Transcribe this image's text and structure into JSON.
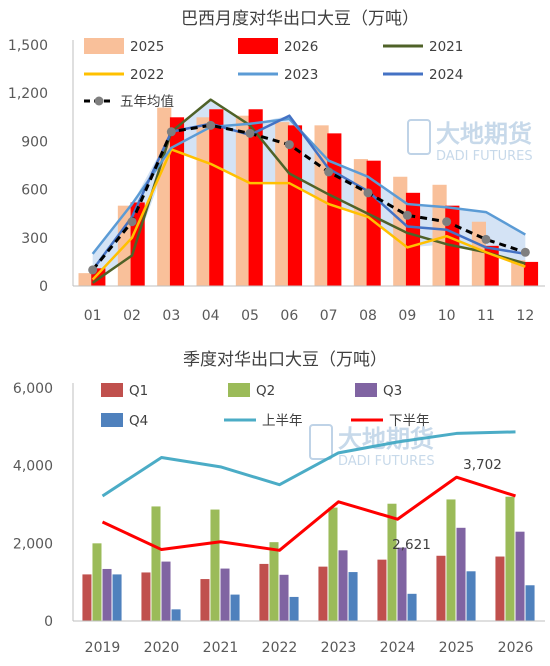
{
  "brand": {
    "name_cn": "大地期货",
    "name_en": "DADI FUTURES",
    "color": "#7fa7cf"
  },
  "chart_data": [
    {
      "type": "bar",
      "title": "巴西月度对华出口大豆（万吨）",
      "categories": [
        "01",
        "02",
        "03",
        "04",
        "05",
        "06",
        "07",
        "08",
        "09",
        "10",
        "11",
        "12"
      ],
      "ylim": [
        0,
        1500
      ],
      "yticks": [
        "0",
        "300",
        "600",
        "900",
        "1,200",
        "1,500"
      ],
      "yticks_values": [
        0,
        300,
        600,
        900,
        1200,
        1500
      ],
      "grid": false,
      "legend_position": "top",
      "band": {
        "note": "five-year range",
        "color": "#c6d9f1"
      },
      "series": [
        {
          "name": "2025",
          "kind": "bar",
          "color": "#f9c09a",
          "values": [
            80,
            500,
            1110,
            1050,
            1060,
            1020,
            1000,
            790,
            680,
            630,
            400,
            160
          ]
        },
        {
          "name": "2026",
          "kind": "bar",
          "color": "#ff0000",
          "values": [
            110,
            520,
            1050,
            1100,
            1100,
            1000,
            950,
            780,
            580,
            500,
            250,
            150
          ]
        },
        {
          "name": "2021",
          "kind": "line",
          "color": "#4f6228",
          "values": [
            20,
            190,
            960,
            1160,
            1000,
            700,
            570,
            450,
            330,
            260,
            210,
            140
          ]
        },
        {
          "name": "2022",
          "kind": "line",
          "color": "#ffc000",
          "values": [
            40,
            300,
            850,
            760,
            640,
            640,
            510,
            430,
            240,
            310,
            210,
            120
          ]
        },
        {
          "name": "2023",
          "kind": "line",
          "color": "#5b9bd5",
          "values": [
            200,
            510,
            860,
            990,
            1010,
            1040,
            780,
            680,
            510,
            490,
            460,
            320
          ]
        },
        {
          "name": "2024",
          "kind": "line",
          "color": "#4472c4",
          "values": [
            100,
            430,
            960,
            1010,
            940,
            1060,
            730,
            590,
            370,
            350,
            240,
            200
          ]
        },
        {
          "name": "五年均值",
          "kind": "line-dashed",
          "color": "#000000",
          "values": [
            100,
            400,
            960,
            1000,
            950,
            880,
            710,
            580,
            440,
            400,
            290,
            210
          ]
        }
      ]
    },
    {
      "type": "bar",
      "title": "季度对华出口大豆（万吨）",
      "categories": [
        "2019",
        "2020",
        "2021",
        "2022",
        "2023",
        "2024",
        "2025",
        "2026"
      ],
      "ylim": [
        0,
        6000
      ],
      "yticks": [
        "0",
        "2,000",
        "4,000",
        "6,000"
      ],
      "yticks_values": [
        0,
        2000,
        4000,
        6000
      ],
      "grid": false,
      "legend_position": "top",
      "series": [
        {
          "name": "Q1",
          "kind": "bar",
          "color": "#c0504d",
          "values": [
            1200,
            1250,
            1080,
            1470,
            1400,
            1580,
            1680,
            1660
          ]
        },
        {
          "name": "Q2",
          "kind": "bar",
          "color": "#9bbb59",
          "values": [
            2000,
            2950,
            2870,
            2030,
            2920,
            3020,
            3130,
            3200
          ]
        },
        {
          "name": "Q3",
          "kind": "bar",
          "color": "#8064a2",
          "values": [
            1340,
            1530,
            1350,
            1190,
            1820,
            1890,
            2400,
            2300
          ]
        },
        {
          "name": "Q4",
          "kind": "bar",
          "color": "#4f81bd",
          "values": [
            1200,
            300,
            680,
            620,
            1260,
            700,
            1280,
            920
          ]
        },
        {
          "name": "上半年",
          "kind": "line",
          "color": "#4bacc6",
          "values": [
            3220,
            4210,
            3970,
            3510,
            4330,
            4610,
            4830,
            4870
          ]
        },
        {
          "name": "下半年",
          "kind": "line",
          "color": "#ff0000",
          "values": [
            2550,
            1840,
            2040,
            1820,
            3070,
            2621,
            3702,
            3220
          ]
        }
      ],
      "annotations": [
        {
          "text": "2,621",
          "category": "2024",
          "series": "下半年"
        },
        {
          "text": "3,702",
          "category": "2025",
          "series": "下半年"
        }
      ]
    }
  ]
}
